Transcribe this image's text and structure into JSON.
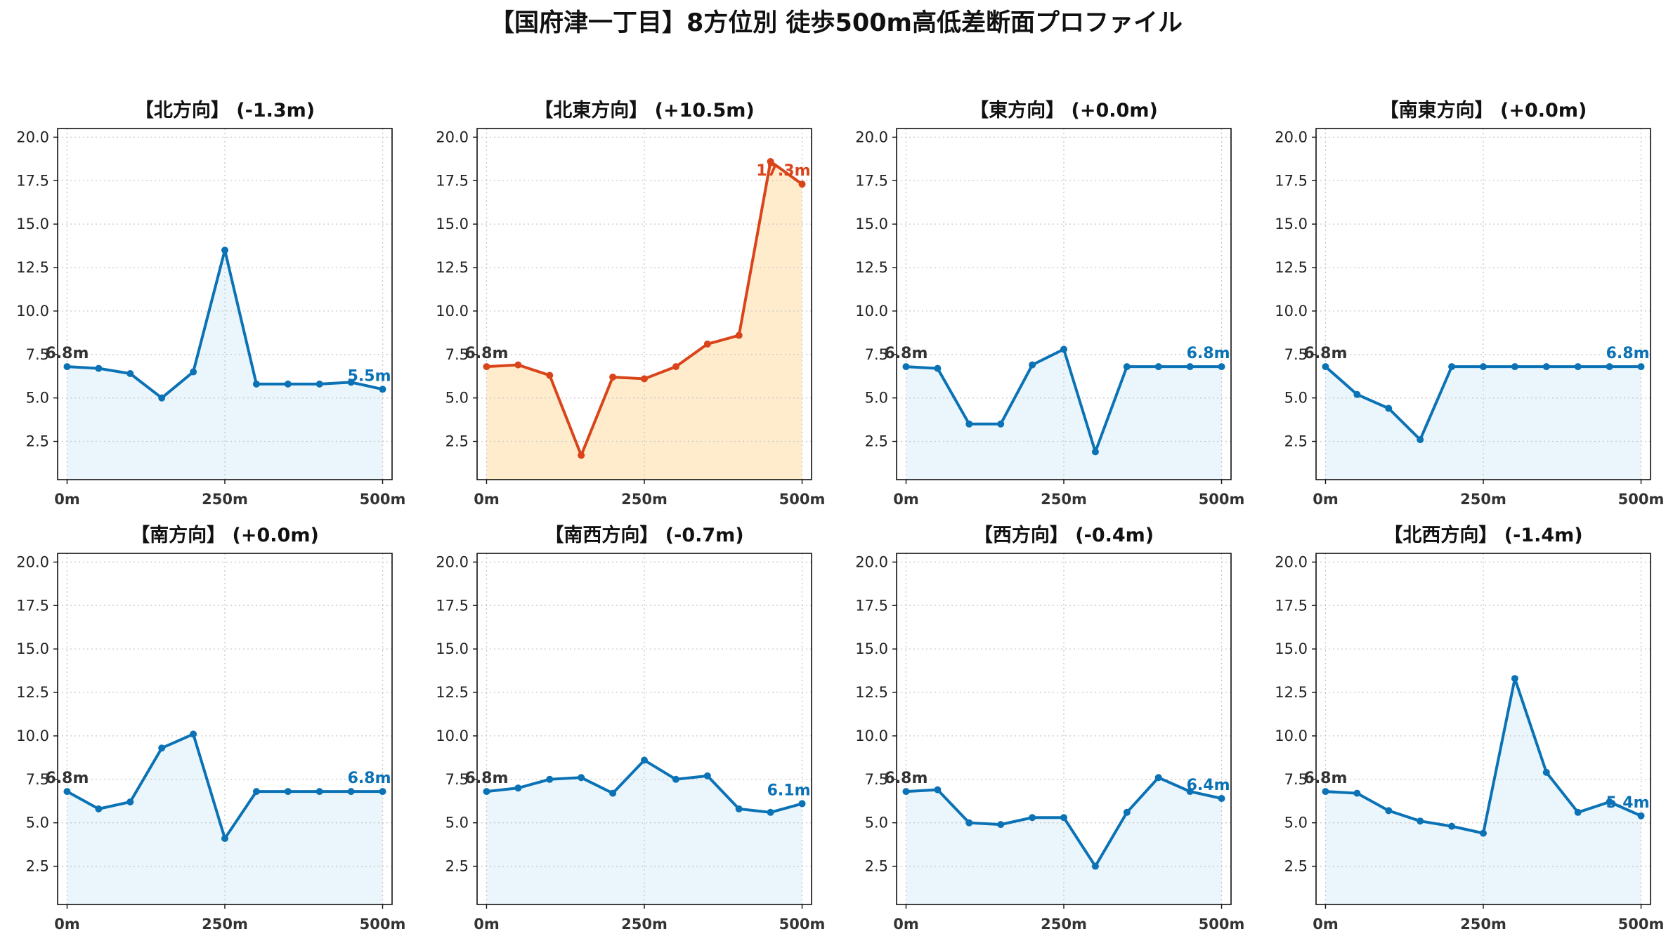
{
  "title": "【国府津一丁目】8方位別 徒歩500m高低差断面プロファイル",
  "colors": {
    "normal_line": "#0a72b5",
    "normal_fill": "#eaf6fc",
    "highlight_line": "#d9441a",
    "highlight_fill": "#ffeccc",
    "start_label": "#333333"
  },
  "chart_data": [
    {
      "type": "area",
      "title": "【北方向】 (-1.3m)",
      "highlight": false,
      "x": [
        0,
        50,
        100,
        150,
        200,
        250,
        300,
        350,
        400,
        450,
        500
      ],
      "values": [
        6.8,
        6.7,
        6.4,
        5.0,
        6.5,
        13.5,
        5.8,
        5.8,
        5.8,
        5.9,
        5.5
      ],
      "start_label": "6.8m",
      "end_label": "5.5m",
      "xticks": [
        "0m",
        "250m",
        "500m"
      ],
      "yticks": [
        "2.5",
        "5.0",
        "7.5",
        "10.0",
        "12.5",
        "15.0",
        "17.5",
        "20.0"
      ],
      "ylim": [
        0.3,
        20.5
      ],
      "xlim": [
        -15,
        515
      ],
      "grid": true
    },
    {
      "type": "area",
      "title": "【北東方向】 (+10.5m)",
      "highlight": true,
      "x": [
        0,
        50,
        100,
        150,
        200,
        250,
        300,
        350,
        400,
        450,
        500
      ],
      "values": [
        6.8,
        6.9,
        6.3,
        1.7,
        6.2,
        6.1,
        6.8,
        8.1,
        8.6,
        18.6,
        17.3
      ],
      "start_label": "6.8m",
      "end_label": "17.3m",
      "xticks": [
        "0m",
        "250m",
        "500m"
      ],
      "yticks": [
        "2.5",
        "5.0",
        "7.5",
        "10.0",
        "12.5",
        "15.0",
        "17.5",
        "20.0"
      ],
      "ylim": [
        0.3,
        20.5
      ],
      "xlim": [
        -15,
        515
      ],
      "grid": true
    },
    {
      "type": "area",
      "title": "【東方向】 (+0.0m)",
      "highlight": false,
      "x": [
        0,
        50,
        100,
        150,
        200,
        250,
        300,
        350,
        400,
        450,
        500
      ],
      "values": [
        6.8,
        6.7,
        3.5,
        3.5,
        6.9,
        7.8,
        1.9,
        6.8,
        6.8,
        6.8,
        6.8
      ],
      "start_label": "6.8m",
      "end_label": "6.8m",
      "xticks": [
        "0m",
        "250m",
        "500m"
      ],
      "yticks": [
        "2.5",
        "5.0",
        "7.5",
        "10.0",
        "12.5",
        "15.0",
        "17.5",
        "20.0"
      ],
      "ylim": [
        0.3,
        20.5
      ],
      "xlim": [
        -15,
        515
      ],
      "grid": true
    },
    {
      "type": "area",
      "title": "【南東方向】 (+0.0m)",
      "highlight": false,
      "x": [
        0,
        50,
        100,
        150,
        200,
        250,
        300,
        350,
        400,
        450,
        500
      ],
      "values": [
        6.8,
        5.2,
        4.4,
        2.6,
        6.8,
        6.8,
        6.8,
        6.8,
        6.8,
        6.8,
        6.8
      ],
      "start_label": "6.8m",
      "end_label": "6.8m",
      "xticks": [
        "0m",
        "250m",
        "500m"
      ],
      "yticks": [
        "2.5",
        "5.0",
        "7.5",
        "10.0",
        "12.5",
        "15.0",
        "17.5",
        "20.0"
      ],
      "ylim": [
        0.3,
        20.5
      ],
      "xlim": [
        -15,
        515
      ],
      "grid": true
    },
    {
      "type": "area",
      "title": "【南方向】 (+0.0m)",
      "highlight": false,
      "x": [
        0,
        50,
        100,
        150,
        200,
        250,
        300,
        350,
        400,
        450,
        500
      ],
      "values": [
        6.8,
        5.8,
        6.2,
        9.3,
        10.1,
        4.1,
        6.8,
        6.8,
        6.8,
        6.8,
        6.8
      ],
      "start_label": "6.8m",
      "end_label": "6.8m",
      "xticks": [
        "0m",
        "250m",
        "500m"
      ],
      "yticks": [
        "2.5",
        "5.0",
        "7.5",
        "10.0",
        "12.5",
        "15.0",
        "17.5",
        "20.0"
      ],
      "ylim": [
        0.3,
        20.5
      ],
      "xlim": [
        -15,
        515
      ],
      "grid": true
    },
    {
      "type": "area",
      "title": "【南西方向】 (-0.7m)",
      "highlight": false,
      "x": [
        0,
        50,
        100,
        150,
        200,
        250,
        300,
        350,
        400,
        450,
        500
      ],
      "values": [
        6.8,
        7.0,
        7.5,
        7.6,
        6.7,
        8.6,
        7.5,
        7.7,
        5.8,
        5.6,
        6.1
      ],
      "start_label": "6.8m",
      "end_label": "6.1m",
      "xticks": [
        "0m",
        "250m",
        "500m"
      ],
      "yticks": [
        "2.5",
        "5.0",
        "7.5",
        "10.0",
        "12.5",
        "15.0",
        "17.5",
        "20.0"
      ],
      "ylim": [
        0.3,
        20.5
      ],
      "xlim": [
        -15,
        515
      ],
      "grid": true
    },
    {
      "type": "area",
      "title": "【西方向】 (-0.4m)",
      "highlight": false,
      "x": [
        0,
        50,
        100,
        150,
        200,
        250,
        300,
        350,
        400,
        450,
        500
      ],
      "values": [
        6.8,
        6.9,
        5.0,
        4.9,
        5.3,
        5.3,
        2.5,
        5.6,
        7.6,
        6.8,
        6.4
      ],
      "start_label": "6.8m",
      "end_label": "6.4m",
      "xticks": [
        "0m",
        "250m",
        "500m"
      ],
      "yticks": [
        "2.5",
        "5.0",
        "7.5",
        "10.0",
        "12.5",
        "15.0",
        "17.5",
        "20.0"
      ],
      "ylim": [
        0.3,
        20.5
      ],
      "xlim": [
        -15,
        515
      ],
      "grid": true
    },
    {
      "type": "area",
      "title": "【北西方向】 (-1.4m)",
      "highlight": false,
      "x": [
        0,
        50,
        100,
        150,
        200,
        250,
        300,
        350,
        400,
        450,
        500
      ],
      "values": [
        6.8,
        6.7,
        5.7,
        5.1,
        4.8,
        4.4,
        13.3,
        7.9,
        5.6,
        6.2,
        5.4
      ],
      "start_label": "6.8m",
      "end_label": "5.4m",
      "xticks": [
        "0m",
        "250m",
        "500m"
      ],
      "yticks": [
        "2.5",
        "5.0",
        "7.5",
        "10.0",
        "12.5",
        "15.0",
        "17.5",
        "20.0"
      ],
      "ylim": [
        0.3,
        20.5
      ],
      "xlim": [
        -15,
        515
      ],
      "grid": true
    }
  ]
}
